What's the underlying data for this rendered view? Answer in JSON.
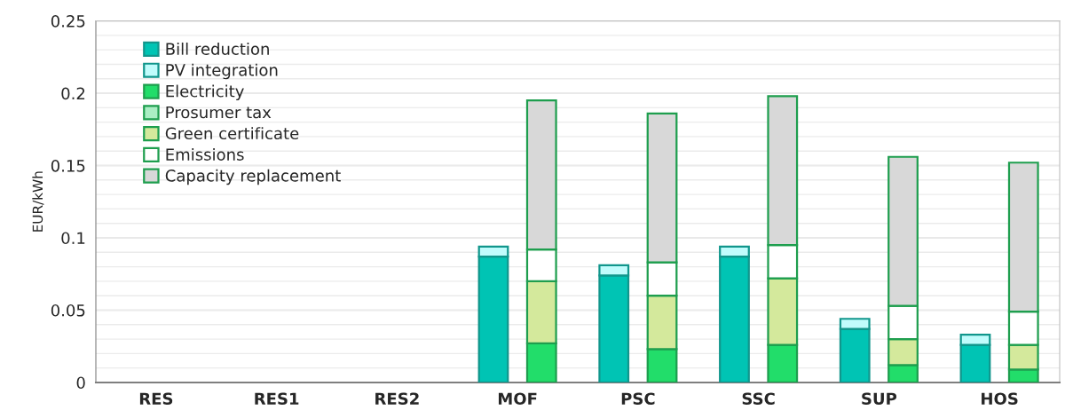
{
  "chart_data": {
    "type": "bar",
    "ylabel": "EUR/kWh",
    "categories": [
      "RES",
      "RES1",
      "RES2",
      "MOF",
      "PSC",
      "SSC",
      "SUP",
      "HOS"
    ],
    "series": [
      {
        "name": "Bill reduction",
        "color": "#00c4b4",
        "values": [
          null,
          null,
          null,
          0.087,
          0.074,
          0.087,
          0.037,
          0.026
        ],
        "base": [
          null,
          null,
          null,
          0,
          0,
          0,
          0,
          0
        ]
      },
      {
        "name": "PV integration",
        "color": "#c0fcfc",
        "values": [
          null,
          null,
          null,
          0.007,
          0.007,
          0.007,
          0.007,
          0.007
        ],
        "base": [
          null,
          null,
          null,
          0.087,
          0.074,
          0.087,
          0.037,
          0.026
        ]
      },
      {
        "name": "Electricity",
        "color": "#22dd6a",
        "values": [
          null,
          null,
          null,
          0.027,
          0.023,
          0.026,
          0.012,
          0.009
        ],
        "base": [
          null,
          null,
          null,
          0,
          0,
          0,
          0,
          0
        ]
      },
      {
        "name": "Prosumer tax",
        "color": "#aaeec4",
        "values": [
          null,
          null,
          null,
          null,
          null,
          null,
          null,
          null
        ],
        "base": [
          null,
          null,
          null,
          null,
          null,
          null,
          null,
          null
        ]
      },
      {
        "name": "Green certificate",
        "color": "#d4e99c",
        "values": [
          null,
          null,
          null,
          0.043,
          0.037,
          0.046,
          0.018,
          0.017
        ],
        "base": [
          null,
          null,
          null,
          0.027,
          0.023,
          0.026,
          0.012,
          0.009
        ]
      },
      {
        "name": "Emissions",
        "color": "#ffffff",
        "values": [
          null,
          null,
          null,
          0.022,
          0.023,
          0.023,
          0.023,
          0.023
        ],
        "base": [
          null,
          null,
          null,
          0.07,
          0.06,
          0.072,
          0.03,
          0.026
        ]
      },
      {
        "name": "Capacity replacement",
        "color": "#d8d8d8",
        "values": [
          null,
          null,
          null,
          0.103,
          0.103,
          0.103,
          0.103,
          0.103
        ],
        "base": [
          null,
          null,
          null,
          0.092,
          0.083,
          0.095,
          0.053,
          0.049
        ]
      }
    ],
    "ylim": [
      0,
      0.25
    ],
    "yticks": [
      0,
      {
        "value": 0.01,
        "label": null
      },
      {
        "value": 0.02,
        "label": null
      },
      {
        "value": 0.03,
        "label": null
      },
      {
        "value": 0.04,
        "label": null
      },
      0.05,
      {
        "value": 0.06,
        "label": null
      },
      {
        "value": 0.07,
        "label": null
      },
      {
        "value": 0.08,
        "label": null
      },
      {
        "value": 0.09,
        "label": null
      },
      0.1,
      {
        "value": 0.11,
        "label": null
      },
      {
        "value": 0.12,
        "label": null
      },
      {
        "value": 0.13,
        "label": null
      },
      {
        "value": 0.14,
        "label": null
      },
      0.15,
      {
        "value": 0.16,
        "label": null
      },
      {
        "value": 0.17,
        "label": null
      },
      {
        "value": 0.18,
        "label": null
      },
      {
        "value": 0.19,
        "label": null
      },
      0.2,
      {
        "value": 0.21,
        "label": null
      },
      {
        "value": 0.22,
        "label": null
      },
      {
        "value": 0.23,
        "label": null
      },
      {
        "value": 0.24,
        "label": null
      },
      0.25
    ],
    "grid": "y",
    "legend": "top left"
  }
}
